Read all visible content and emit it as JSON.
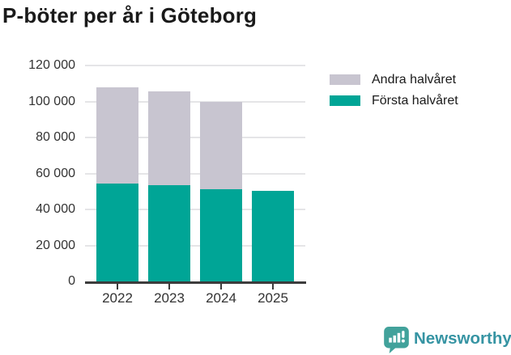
{
  "title": "P-böter per år i Göteborg",
  "chart_data": {
    "type": "bar",
    "stacked": true,
    "title": "P-böter per år i Göteborg",
    "categories": [
      "2022",
      "2023",
      "2024",
      "2025"
    ],
    "series": [
      {
        "name": "Första halvåret",
        "color": "#00a596",
        "values": [
          54400,
          53300,
          51400,
          50500
        ]
      },
      {
        "name": "Andra halvåret",
        "color": "#c8c5d0",
        "values": [
          53700,
          52400,
          48300,
          0
        ]
      }
    ],
    "xlabel": "",
    "ylabel": "",
    "ylim": [
      0,
      120000
    ],
    "ytick_step": 20000,
    "ytick_labels": [
      "0",
      "20 000",
      "40 000",
      "60 000",
      "80 000",
      "100 000",
      "120 000"
    ],
    "grid": true,
    "legend_position": "outside-upper-right",
    "legend_order": [
      "Andra halvåret",
      "Första halvåret"
    ]
  },
  "legend": {
    "items": [
      {
        "label": "Andra halvåret",
        "color": "#c8c5d0"
      },
      {
        "label": "Första halvåret",
        "color": "#00a596"
      }
    ]
  },
  "footer": {
    "brand": "Newsworthy",
    "brand_color": "#3694a3",
    "icon": "newsworthy-bar-chart-speech-bubble",
    "icon_color": "#42a29b"
  },
  "colors": {
    "first_half_bar": "#00a596",
    "second_half_bar": "#c8c5d0",
    "gridline": "#e5e5e7",
    "axis": "#3c3c3c",
    "tick_text": "#333333",
    "title_text": "#1a1a1a",
    "background": "#ffffff"
  }
}
